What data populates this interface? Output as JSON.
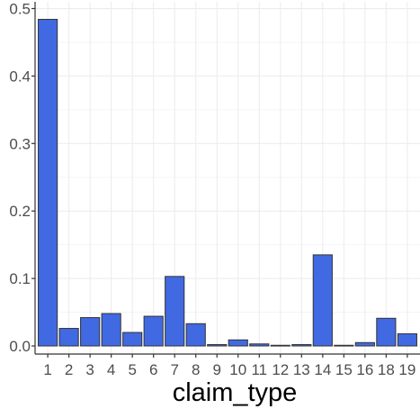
{
  "chart_data": {
    "type": "bar",
    "xlabel": "claim_type",
    "ylabel": "",
    "title": "",
    "categories": [
      "1",
      "2",
      "3",
      "4",
      "5",
      "6",
      "7",
      "8",
      "9",
      "10",
      "11",
      "12",
      "13",
      "14",
      "15",
      "16",
      "18",
      "19"
    ],
    "values": [
      0.484,
      0.026,
      0.042,
      0.048,
      0.02,
      0.044,
      0.103,
      0.033,
      0.002,
      0.009,
      0.003,
      0.001,
      0.002,
      0.135,
      0.001,
      0.005,
      0.041,
      0.018
    ],
    "ylim": [
      -0.012,
      0.51
    ],
    "yticks": [
      0.0,
      0.1,
      0.2,
      0.3,
      0.4,
      0.5
    ],
    "ytick_labels": [
      "0.0",
      "0.1",
      "0.2",
      "0.3",
      "0.4",
      "0.5"
    ],
    "grid": true,
    "colors": {
      "bar_fill": "#4169E1",
      "bar_stroke": "#333333",
      "grid_major": "#ebebeb",
      "grid_minor": "#f5f5f5",
      "axis_line": "#333333",
      "tick_text": "#4d4d4d"
    }
  }
}
